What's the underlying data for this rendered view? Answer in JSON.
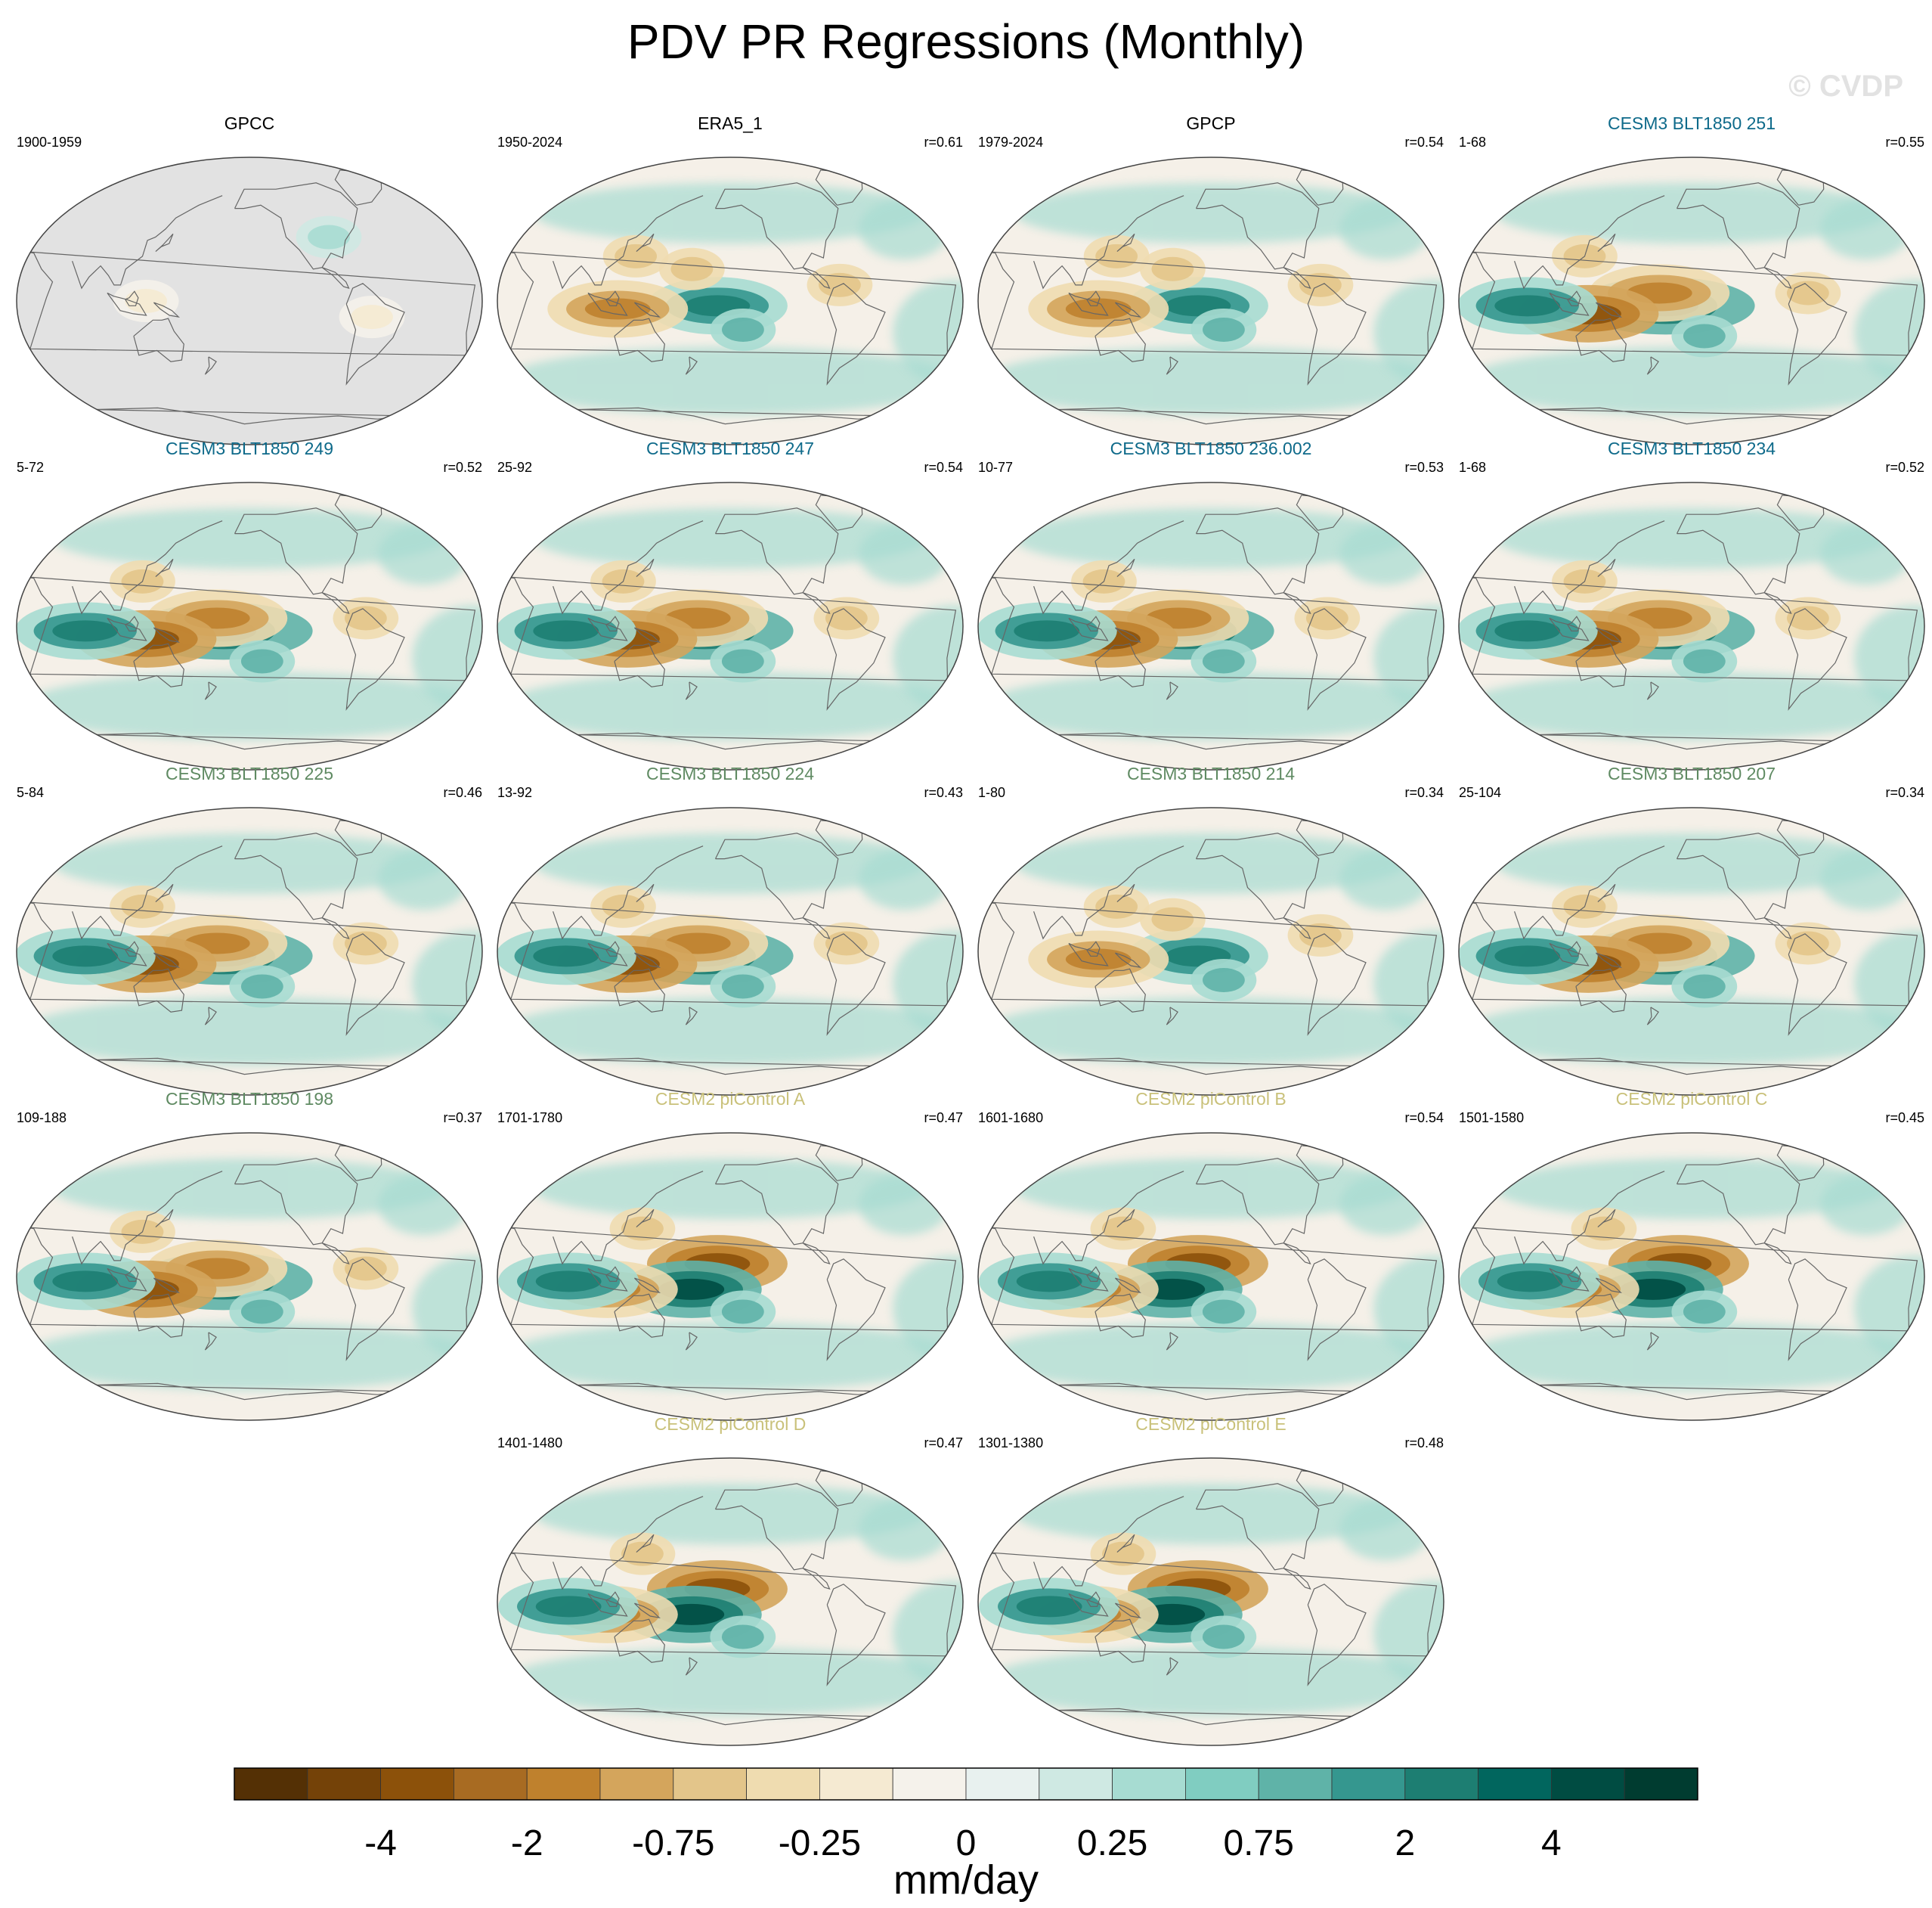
{
  "title": "PDV PR Regressions (Monthly)",
  "watermark": "© CVDP",
  "colors": {
    "ocean_bg": "#f5f0e8",
    "missing": "#e2e2e2",
    "coast": "#666666",
    "title_obs": "#000000",
    "title_group1": "#0e6a8a",
    "title_group2": "#5f8a62",
    "title_group3": "#c9c17a"
  },
  "panels": [
    {
      "title": "GPCC",
      "period": "1900-1959",
      "r": "",
      "group": "obs",
      "style": "land"
    },
    {
      "title": "ERA5_1",
      "period": "1950-2024",
      "r": "r=0.61",
      "group": "obs",
      "style": "weak"
    },
    {
      "title": "GPCP",
      "period": "1979-2024",
      "r": "r=0.54",
      "group": "obs",
      "style": "weak"
    },
    {
      "title": "CESM3 BLT1850 251",
      "period": "1-68",
      "r": "r=0.55",
      "group": "group1",
      "style": "cesm3"
    },
    {
      "title": "CESM3 BLT1850 249",
      "period": "5-72",
      "r": "r=0.52",
      "group": "group1",
      "style": "cesm3"
    },
    {
      "title": "CESM3 BLT1850 247",
      "period": "25-92",
      "r": "r=0.54",
      "group": "group1",
      "style": "cesm3"
    },
    {
      "title": "CESM3 BLT1850 236.002",
      "period": "10-77",
      "r": "r=0.53",
      "group": "group1",
      "style": "cesm3"
    },
    {
      "title": "CESM3 BLT1850 234",
      "period": "1-68",
      "r": "r=0.52",
      "group": "group1",
      "style": "cesm3"
    },
    {
      "title": "CESM3 BLT1850 225",
      "period": "5-84",
      "r": "r=0.46",
      "group": "group2",
      "style": "cesm3"
    },
    {
      "title": "CESM3 BLT1850 224",
      "period": "13-92",
      "r": "r=0.43",
      "group": "group2",
      "style": "cesm3"
    },
    {
      "title": "CESM3 BLT1850 214",
      "period": "1-80",
      "r": "r=0.34",
      "group": "group2",
      "style": "weak"
    },
    {
      "title": "CESM3 BLT1850 207",
      "period": "25-104",
      "r": "r=0.34",
      "group": "group2",
      "style": "cesm3"
    },
    {
      "title": "CESM3 BLT1850 198",
      "period": "109-188",
      "r": "r=0.37",
      "group": "group2",
      "style": "cesm3"
    },
    {
      "title": "CESM2 piControl A",
      "period": "1701-1780",
      "r": "r=0.47",
      "group": "group3",
      "style": "cesm2"
    },
    {
      "title": "CESM2 piControl B",
      "period": "1601-1680",
      "r": "r=0.54",
      "group": "group3",
      "style": "cesm2"
    },
    {
      "title": "CESM2 piControl C",
      "period": "1501-1580",
      "r": "r=0.45",
      "group": "group3",
      "style": "cesm2"
    },
    {
      "title": "CESM2 piControl D",
      "period": "1401-1480",
      "r": "r=0.47",
      "group": "group3",
      "style": "cesm2"
    },
    {
      "title": "CESM2 piControl E",
      "period": "1301-1380",
      "r": "r=0.48",
      "group": "group3",
      "style": "cesm2"
    }
  ],
  "chart_data": {
    "type": "heatmap",
    "title": "PDV PR Regressions (Monthly)",
    "projection": "Robinson, Pacific-centered",
    "colorbar": {
      "units": "mm/day",
      "tick_labels": [
        "-4",
        "-2",
        "-0.75",
        "-0.25",
        "0",
        "0.25",
        "0.75",
        "2",
        "4"
      ],
      "colors": [
        "#543005",
        "#744208",
        "#8c510a",
        "#a86b22",
        "#bf812d",
        "#d4a55c",
        "#e3c58a",
        "#efdcb0",
        "#f5ead2",
        "#f5f2eb",
        "#e8f1ef",
        "#cfe9e3",
        "#a7dcd2",
        "#80cdc1",
        "#5fb3a8",
        "#35978f",
        "#1d7e72",
        "#01665e",
        "#004c42",
        "#003c30"
      ],
      "range": [
        -5,
        5
      ]
    },
    "features": {
      "cesm3": [
        {
          "lon": 185,
          "lat": -3,
          "value": 4
        },
        {
          "lon": 180,
          "lat": 5,
          "value": -2
        },
        {
          "lon": 125,
          "lat": -8,
          "value": -4
        },
        {
          "lon": 78,
          "lat": -3,
          "value": 2
        },
        {
          "lon": 120,
          "lat": 28,
          "value": -0.75
        },
        {
          "lon": 215,
          "lat": -22,
          "value": 0.75
        },
        {
          "lon": 295,
          "lat": 5,
          "value": -0.75
        }
      ],
      "cesm2": [
        {
          "lon": 195,
          "lat": 8,
          "value": -4
        },
        {
          "lon": 175,
          "lat": -8,
          "value": 4
        },
        {
          "lon": 110,
          "lat": -8,
          "value": -2
        },
        {
          "lon": 80,
          "lat": -3,
          "value": 2
        },
        {
          "lon": 215,
          "lat": -22,
          "value": 0.75
        },
        {
          "lon": 135,
          "lat": 30,
          "value": -0.75
        }
      ],
      "weak": [
        {
          "lon": 195,
          "lat": -3,
          "value": 2
        },
        {
          "lon": 118,
          "lat": -5,
          "value": -2
        },
        {
          "lon": 130,
          "lat": 28,
          "value": -0.75
        },
        {
          "lon": 175,
          "lat": 20,
          "value": -0.75
        },
        {
          "lon": 215,
          "lat": -18,
          "value": 0.75
        },
        {
          "lon": 290,
          "lat": 10,
          "value": -0.75
        }
      ],
      "land": [
        {
          "lon": 125,
          "lat": 0,
          "value": -0.25
        },
        {
          "lon": 300,
          "lat": -10,
          "value": -0.25
        },
        {
          "lon": 270,
          "lat": 40,
          "value": 0.25
        }
      ]
    }
  }
}
